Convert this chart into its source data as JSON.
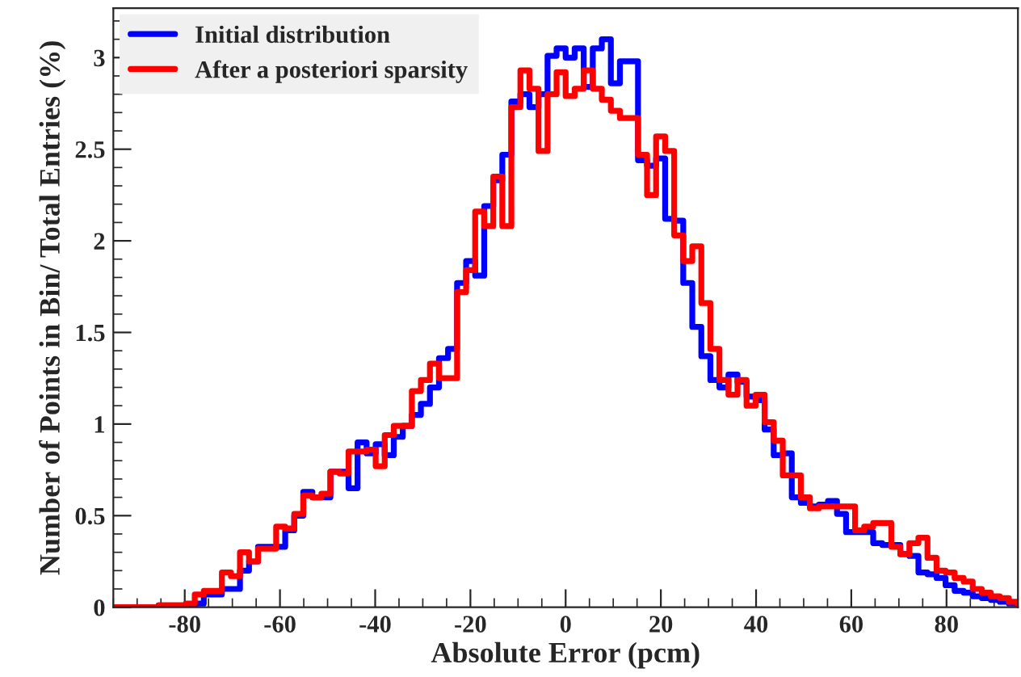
{
  "chart_data": {
    "type": "histogram",
    "xlabel": "Absolute Error (pcm)",
    "ylabel": "Number of Points in Bin/ Total Entries (%)",
    "bins": [
      -95,
      -93.1,
      -91.2,
      -89.3,
      -87.4,
      -85.5,
      -83.6,
      -81.7,
      -79.8,
      -77.9,
      -76,
      -74.1,
      -72.2,
      -70.3,
      -68.4,
      -66.5,
      -64.6,
      -62.7,
      -60.8,
      -58.9,
      -57,
      -55.1,
      -53.2,
      -51.3,
      -49.4,
      -47.5,
      -45.6,
      -43.7,
      -41.8,
      -39.9,
      -38,
      -36.1,
      -34.2,
      -32.3,
      -30.4,
      -28.5,
      -26.6,
      -24.7,
      -22.8,
      -20.9,
      -19,
      -17.1,
      -15.2,
      -13.3,
      -11.4,
      -9.5,
      -7.6,
      -5.7,
      -3.8,
      -1.9,
      0,
      1.9,
      3.8,
      5.7,
      7.6,
      9.5,
      11.4,
      13.3,
      15.2,
      17.1,
      19,
      20.9,
      22.8,
      24.7,
      26.6,
      28.5,
      30.4,
      32.3,
      34.2,
      36.1,
      38,
      39.9,
      41.8,
      43.7,
      45.6,
      47.5,
      49.4,
      51.3,
      53.2,
      55.1,
      57,
      58.9,
      60.8,
      62.7,
      64.6,
      66.5,
      68.4,
      70.3,
      72.2,
      74.1,
      76,
      77.9,
      79.8,
      81.7,
      83.6,
      85.5,
      87.4,
      89.3,
      91.2,
      93.1,
      95
    ],
    "series": [
      {
        "name": "Initial distribution",
        "color": "#0000ff",
        "values": [
          0,
          0,
          0,
          0,
          0,
          0.01,
          0.01,
          0.01,
          0.01,
          0.02,
          0.07,
          0.07,
          0.1,
          0.1,
          0.2,
          0.25,
          0.33,
          0.33,
          0.33,
          0.42,
          0.5,
          0.63,
          0.6,
          0.6,
          0.74,
          0.74,
          0.65,
          0.9,
          0.84,
          0.89,
          0.83,
          0.93,
          0.99,
          1.05,
          1.11,
          1.2,
          1.36,
          1.41,
          1.77,
          1.89,
          1.81,
          2.19,
          2.33,
          2.47,
          2.76,
          2.8,
          2.73,
          2.8,
          3.01,
          3.05,
          3.0,
          3.05,
          2.84,
          3.05,
          3.1,
          2.86,
          2.98,
          2.98,
          2.44,
          2.41,
          2.45,
          2.12,
          2.11,
          1.77,
          1.53,
          1.37,
          1.24,
          1.2,
          1.27,
          1.23,
          1.15,
          1.13,
          0.97,
          0.83,
          0.84,
          0.6,
          0.57,
          0.55,
          0.56,
          0.58,
          0.51,
          0.41,
          0.41,
          0.41,
          0.35,
          0.34,
          0.34,
          0.29,
          0.28,
          0.19,
          0.18,
          0.16,
          0.12,
          0.09,
          0.08,
          0.06,
          0.05,
          0.04,
          0.03,
          0.02
        ]
      },
      {
        "name": "After a posteriori sparsity",
        "color": "#ff0000",
        "values": [
          0,
          0,
          0,
          0,
          0,
          0.01,
          0.01,
          0.01,
          0.02,
          0.07,
          0.09,
          0.09,
          0.19,
          0.17,
          0.3,
          0.25,
          0.32,
          0.32,
          0.44,
          0.43,
          0.51,
          0.61,
          0.6,
          0.62,
          0.74,
          0.73,
          0.85,
          0.85,
          0.86,
          0.77,
          0.94,
          0.99,
          0.99,
          1.18,
          1.24,
          1.33,
          1.25,
          1.25,
          1.72,
          1.84,
          2.16,
          2.08,
          2.35,
          2.08,
          2.73,
          2.93,
          2.83,
          2.49,
          2.8,
          2.92,
          2.79,
          2.83,
          2.93,
          2.83,
          2.77,
          2.71,
          2.67,
          2.67,
          2.47,
          2.25,
          2.57,
          2.49,
          2.03,
          1.89,
          1.97,
          1.66,
          1.41,
          1.24,
          1.16,
          1.24,
          1.1,
          1.16,
          1.01,
          0.91,
          0.72,
          0.72,
          0.6,
          0.54,
          0.55,
          0.55,
          0.55,
          0.55,
          0.42,
          0.44,
          0.46,
          0.46,
          0.33,
          0.29,
          0.35,
          0.38,
          0.27,
          0.2,
          0.19,
          0.16,
          0.14,
          0.1,
          0.08,
          0.06,
          0.05,
          0.03
        ]
      }
    ],
    "xlim": [
      -95,
      95
    ],
    "xticks": [
      -80,
      -60,
      -40,
      -20,
      0,
      20,
      40,
      60,
      80
    ],
    "ylim": [
      0,
      3.27
    ],
    "yticks": [
      0,
      0.5,
      1,
      1.5,
      2,
      2.5,
      3
    ],
    "grid": false,
    "legend": "top left"
  }
}
